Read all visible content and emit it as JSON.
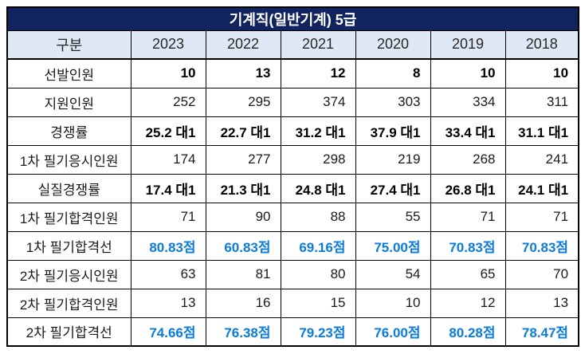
{
  "title": "기계직(일반기계) 5급",
  "colors": {
    "title_bg": "#122460",
    "title_text": "#FFFFFF",
    "header_bg": "#DEE9F5",
    "score_text": "#0B7CDB",
    "border": "#000000"
  },
  "table": {
    "corner_label": "구분",
    "years": [
      "2023",
      "2022",
      "2021",
      "2020",
      "2019",
      "2018"
    ],
    "rows": [
      {
        "label": "선발인원",
        "style": "bold",
        "values": [
          "10",
          "13",
          "12",
          "8",
          "10",
          "10"
        ]
      },
      {
        "label": "지원인원",
        "style": "normal",
        "values": [
          "252",
          "295",
          "374",
          "303",
          "334",
          "311"
        ]
      },
      {
        "label": "경쟁률",
        "style": "bold",
        "values": [
          "25.2 대1",
          "22.7 대1",
          "31.2 대1",
          "37.9 대1",
          "33.4 대1",
          "31.1 대1"
        ]
      },
      {
        "label": "1차 필기응시인원",
        "style": "normal",
        "values": [
          "174",
          "277",
          "298",
          "219",
          "268",
          "241"
        ]
      },
      {
        "label": "실질경쟁률",
        "style": "bold",
        "values": [
          "17.4 대1",
          "21.3 대1",
          "24.8 대1",
          "27.4 대1",
          "26.8 대1",
          "24.1 대1"
        ]
      },
      {
        "label": "1차 필기합격인원",
        "style": "normal",
        "values": [
          "71",
          "90",
          "88",
          "55",
          "71",
          "71"
        ]
      },
      {
        "label": "1차 필기합격선",
        "style": "score",
        "values": [
          "80.83점",
          "60.83점",
          "69.16점",
          "75.00점",
          "70.83점",
          "70.83점"
        ]
      },
      {
        "label": "2차 필기응시인원",
        "style": "normal",
        "values": [
          "63",
          "81",
          "80",
          "54",
          "65",
          "70"
        ]
      },
      {
        "label": "2차 필기합격인원",
        "style": "normal",
        "values": [
          "13",
          "16",
          "15",
          "10",
          "12",
          "13"
        ]
      },
      {
        "label": "2차 필기합격선",
        "style": "score",
        "values": [
          "74.66점",
          "76.38점",
          "79.23점",
          "76.00점",
          "80.28점",
          "78.47점"
        ]
      }
    ]
  }
}
